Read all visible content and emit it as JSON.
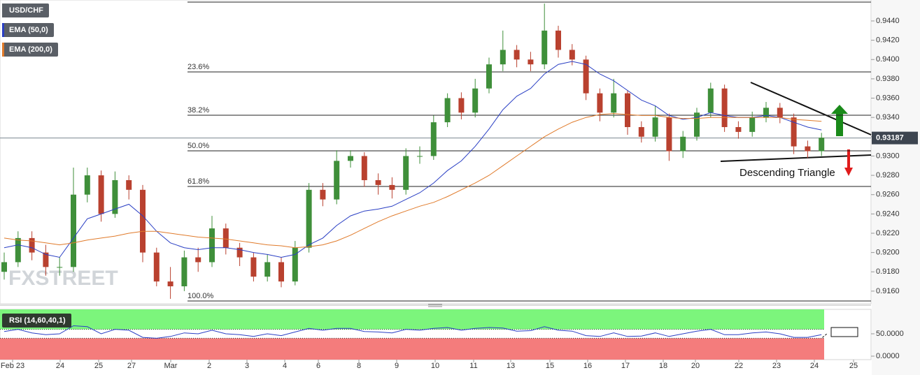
{
  "chart_data": [
    {
      "type": "candlestick",
      "title": "USD/CHF",
      "watermark": "FXSTREET",
      "annotation": "Descending Triangle",
      "up_color": "#3f8f3a",
      "down_color": "#b9412f",
      "ylim": [
        0.91469,
        0.94617
      ],
      "yticks": [
        {
          "value": 0.916,
          "label": "0.9160"
        },
        {
          "value": 0.918,
          "label": "0.9180"
        },
        {
          "value": 0.92,
          "label": "0.9200"
        },
        {
          "value": 0.922,
          "label": "0.9220"
        },
        {
          "value": 0.924,
          "label": "0.9240"
        },
        {
          "value": 0.926,
          "label": "0.9260"
        },
        {
          "value": 0.928,
          "label": "0.9280"
        },
        {
          "value": 0.93,
          "label": "0.9300"
        },
        {
          "value": 0.932,
          "label": "0.9320"
        },
        {
          "value": 0.934,
          "label": "0.9340"
        },
        {
          "value": 0.936,
          "label": "0.9360"
        },
        {
          "value": 0.938,
          "label": "0.9380"
        },
        {
          "value": 0.94,
          "label": "0.9400"
        },
        {
          "value": 0.942,
          "label": "0.9420"
        },
        {
          "value": 0.944,
          "label": "0.9440"
        }
      ],
      "last_price": {
        "value": 0.93187,
        "label": "0.93187"
      },
      "levels": [
        {
          "value": 0.94595,
          "label": null
        },
        {
          "value": 0.93872,
          "label": "23.6%"
        },
        {
          "value": 0.93423,
          "label": "38.2%"
        },
        {
          "value": 0.93054,
          "label": "50.0%"
        },
        {
          "value": 0.92685,
          "label": "61.8%"
        },
        {
          "value": 0.91498,
          "label": "100.0%"
        }
      ],
      "series": [
        {
          "name": "USD/CHF",
          "color": "#5a5f66",
          "open": [
            0.918,
            0.919,
            0.9215,
            0.92,
            0.9185,
            0.9185,
            0.926,
            0.928,
            0.924,
            0.9275,
            0.9265,
            0.92,
            0.917,
            0.9165,
            0.9195,
            0.919,
            0.9225,
            0.9205,
            0.9195,
            0.9175,
            0.919,
            0.917,
            0.9205,
            0.9265,
            0.9255,
            0.9295,
            0.93,
            0.9275,
            0.927,
            0.9265,
            0.93,
            0.93,
            0.9335,
            0.936,
            0.9345,
            0.937,
            0.9395,
            0.941,
            0.94,
            0.9395,
            0.943,
            0.941,
            0.94,
            0.9365,
            0.9345,
            0.9365,
            0.933,
            0.932,
            0.934,
            0.9305,
            0.932,
            0.9345,
            0.937,
            0.933,
            0.9325,
            0.934,
            0.935,
            0.934,
            0.931,
            0.9305
          ],
          "high": [
            0.92,
            0.9222,
            0.9222,
            0.9208,
            0.9195,
            0.9288,
            0.9288,
            0.9285,
            0.9284,
            0.928,
            0.927,
            0.9205,
            0.9185,
            0.9202,
            0.9205,
            0.9238,
            0.923,
            0.921,
            0.92,
            0.9198,
            0.9195,
            0.9212,
            0.9272,
            0.9272,
            0.9306,
            0.9306,
            0.9304,
            0.9282,
            0.9278,
            0.9308,
            0.931,
            0.9342,
            0.9365,
            0.9366,
            0.938,
            0.9402,
            0.943,
            0.9415,
            0.9408,
            0.9458,
            0.9435,
            0.9416,
            0.9404,
            0.937,
            0.938,
            0.9368,
            0.9336,
            0.9352,
            0.9344,
            0.9326,
            0.935,
            0.9376,
            0.9374,
            0.9336,
            0.9346,
            0.9356,
            0.9355,
            0.9344,
            0.9316,
            0.9324
          ],
          "low": [
            0.9172,
            0.9185,
            0.9192,
            0.9176,
            0.9176,
            0.918,
            0.9252,
            0.9232,
            0.9236,
            0.9255,
            0.919,
            0.9165,
            0.9152,
            0.916,
            0.918,
            0.9185,
            0.9198,
            0.9186,
            0.917,
            0.917,
            0.9164,
            0.9166,
            0.92,
            0.9248,
            0.925,
            0.9288,
            0.9268,
            0.926,
            0.9256,
            0.926,
            0.9292,
            0.9296,
            0.933,
            0.9338,
            0.934,
            0.9365,
            0.9388,
            0.9392,
            0.9388,
            0.939,
            0.9402,
            0.9394,
            0.9358,
            0.9336,
            0.934,
            0.9322,
            0.9314,
            0.9315,
            0.9295,
            0.9298,
            0.9316,
            0.934,
            0.9325,
            0.9318,
            0.932,
            0.9335,
            0.9334,
            0.9302,
            0.9298,
            0.93
          ],
          "close": [
            0.919,
            0.9215,
            0.92,
            0.9185,
            0.9185,
            0.926,
            0.928,
            0.924,
            0.9275,
            0.9265,
            0.92,
            0.917,
            0.9165,
            0.9195,
            0.919,
            0.9225,
            0.9205,
            0.9195,
            0.9175,
            0.919,
            0.917,
            0.9205,
            0.9265,
            0.9255,
            0.9295,
            0.93,
            0.9275,
            0.927,
            0.9265,
            0.93,
            0.93,
            0.9335,
            0.936,
            0.9345,
            0.937,
            0.9395,
            0.941,
            0.94,
            0.9395,
            0.943,
            0.941,
            0.94,
            0.9365,
            0.9345,
            0.9365,
            0.933,
            0.932,
            0.934,
            0.9305,
            0.932,
            0.9345,
            0.937,
            0.933,
            0.9325,
            0.934,
            0.935,
            0.934,
            0.931,
            0.9305,
            0.9319
          ]
        },
        {
          "name": "EMA (50,0)",
          "color": "#2a3fc4",
          "values": [
            0.9205,
            0.9208,
            0.9205,
            0.9198,
            0.9195,
            0.9215,
            0.9235,
            0.924,
            0.9245,
            0.925,
            0.9238,
            0.9222,
            0.921,
            0.9205,
            0.9203,
            0.9205,
            0.9205,
            0.9203,
            0.92,
            0.9198,
            0.9195,
            0.9198,
            0.9208,
            0.9215,
            0.9228,
            0.9238,
            0.9243,
            0.9245,
            0.9248,
            0.9255,
            0.9262,
            0.9272,
            0.9285,
            0.9295,
            0.931,
            0.9328,
            0.9348,
            0.9362,
            0.937,
            0.9385,
            0.9395,
            0.9398,
            0.9395,
            0.9385,
            0.9378,
            0.9368,
            0.9358,
            0.9352,
            0.9342,
            0.9338,
            0.934,
            0.9345,
            0.9342,
            0.934,
            0.934,
            0.9342,
            0.934,
            0.9335,
            0.933,
            0.9327
          ]
        },
        {
          "name": "EMA (200,0)",
          "color": "#e07a2a",
          "values": [
            0.9215,
            0.9213,
            0.9212,
            0.921,
            0.9208,
            0.921,
            0.9213,
            0.9215,
            0.9217,
            0.922,
            0.9222,
            0.9222,
            0.922,
            0.9218,
            0.9216,
            0.9215,
            0.9214,
            0.9212,
            0.921,
            0.9208,
            0.9207,
            0.9205,
            0.9206,
            0.9208,
            0.9212,
            0.9218,
            0.9225,
            0.9232,
            0.9238,
            0.9243,
            0.9248,
            0.9252,
            0.9258,
            0.9265,
            0.9272,
            0.928,
            0.929,
            0.93,
            0.931,
            0.932,
            0.9328,
            0.9335,
            0.934,
            0.9343,
            0.9344,
            0.9343,
            0.9342,
            0.9342,
            0.934,
            0.9339,
            0.9339,
            0.934,
            0.934,
            0.934,
            0.934,
            0.934,
            0.934,
            0.9338,
            0.9337,
            0.9336
          ]
        }
      ]
    },
    {
      "type": "line",
      "title": "RSI (14,60,40,1)",
      "ylim": [
        -7.8,
        104.7
      ],
      "yticks": [
        {
          "value": 50,
          "label": "50.0000"
        },
        {
          "value": 0,
          "label": "0.0000"
        }
      ],
      "upper": 60,
      "lower": 40,
      "x_labels": [
        "Feb 23",
        "24",
        "25",
        "27",
        "Mar",
        "2",
        "3",
        "4",
        "6",
        "8",
        "9",
        "10",
        "11",
        "13",
        "15",
        "16",
        "17",
        "18",
        "20",
        "22",
        "23",
        "24",
        "25"
      ],
      "series": [
        {
          "name": "RSI (14,60,40,1)",
          "color": "#2a3fc4",
          "values": [
            55,
            60,
            52,
            48,
            50,
            68,
            66,
            50,
            60,
            58,
            42,
            40,
            44,
            52,
            50,
            58,
            50,
            48,
            44,
            50,
            46,
            54,
            62,
            58,
            62,
            62,
            55,
            54,
            52,
            60,
            58,
            62,
            64,
            58,
            62,
            64,
            63,
            56,
            57,
            66,
            58,
            56,
            46,
            44,
            52,
            44,
            45,
            52,
            44,
            50,
            56,
            60,
            48,
            48,
            52,
            54,
            50,
            42,
            42,
            48
          ]
        }
      ]
    }
  ]
}
